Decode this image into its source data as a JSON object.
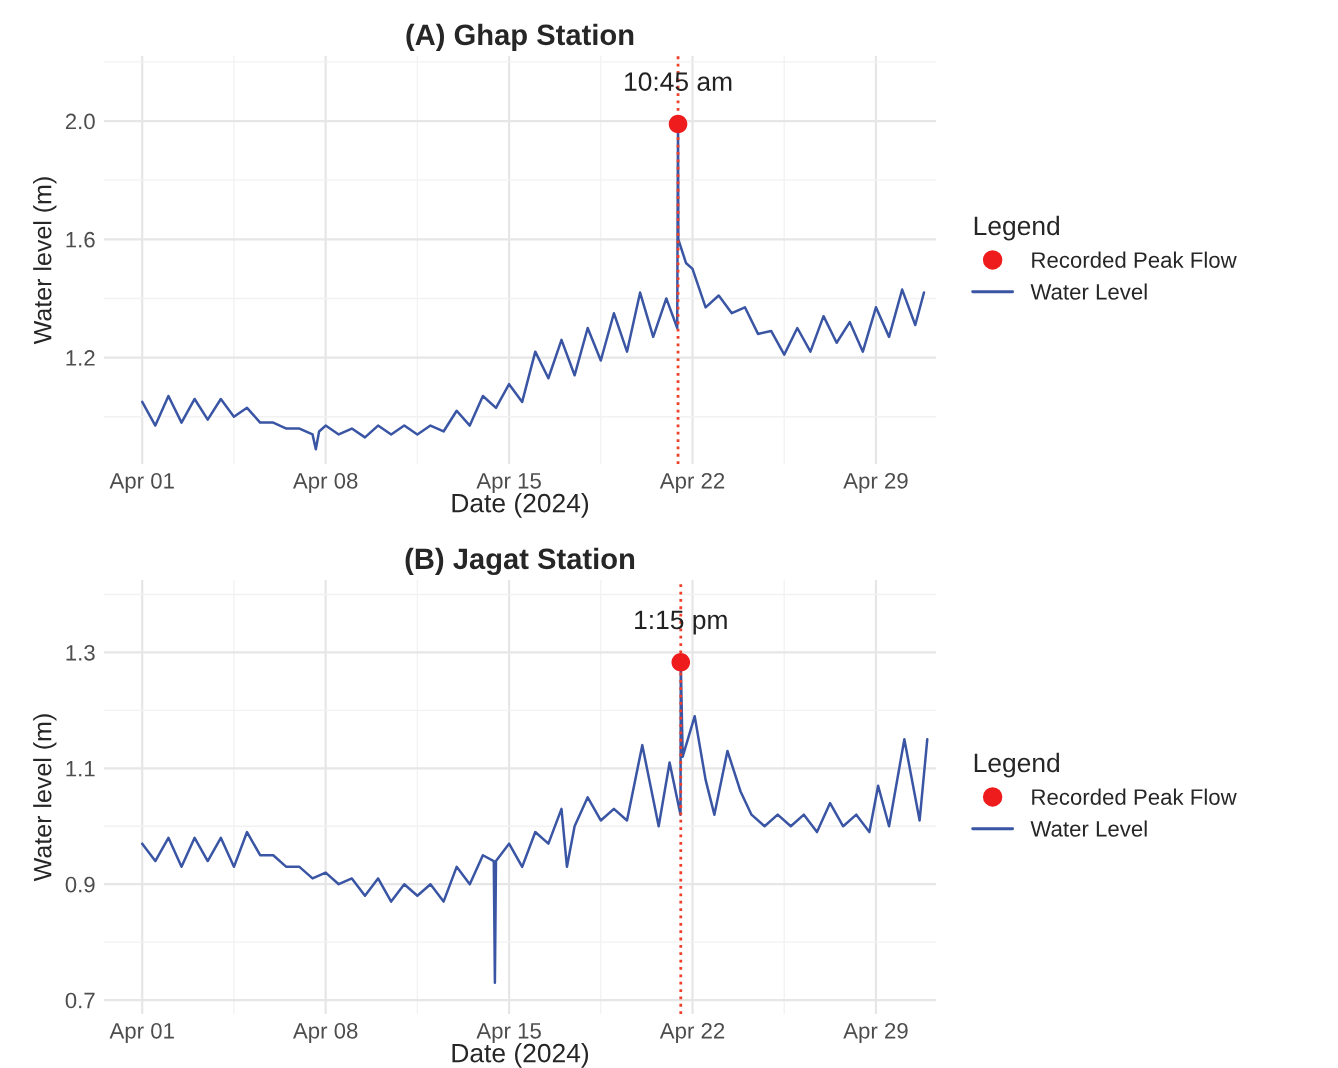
{
  "chart_data": [
    {
      "type": "line",
      "title": "(A) Ghap Station",
      "xlabel": "Date (2024)",
      "ylabel": "Water level (m)",
      "legend_title": "Legend",
      "legend": "right",
      "grid": true,
      "xlim": [
        "2024-03-30T13:00",
        "2024-05-01T07:00"
      ],
      "ylim": [
        0.84,
        2.22
      ],
      "xticks": [
        {
          "value": "2024-04-01",
          "label": "Apr 01"
        },
        {
          "value": "2024-04-08",
          "label": "Apr 08"
        },
        {
          "value": "2024-04-15",
          "label": "Apr 15"
        },
        {
          "value": "2024-04-22",
          "label": "Apr 22"
        },
        {
          "value": "2024-04-29",
          "label": "Apr 29"
        }
      ],
      "yticks": [
        1.2,
        1.6,
        {
          "value": 2.0,
          "label": "2.0"
        }
      ],
      "ref_lines": [
        {
          "axis": "x",
          "value": "2024-04-21T10:45",
          "color": "#f0402a",
          "line_style": "dotted"
        }
      ],
      "annotations": [
        {
          "text": "10:45 am",
          "x": "2024-04-21T10:45",
          "y": 1.99
        }
      ],
      "series": [
        {
          "name": "Recorded Peak Flow",
          "type": "scatter",
          "color": "#ee1c1c",
          "marker": "circle",
          "x": [
            "2024-04-21T10:45"
          ],
          "values": [
            1.99
          ]
        },
        {
          "name": "Water Level",
          "color": "#3a55a4",
          "line_style": "solid",
          "x": [
            "2024-04-01T00:00",
            "2024-04-01T12:00",
            "2024-04-02T00:00",
            "2024-04-02T12:00",
            "2024-04-03T00:00",
            "2024-04-03T12:00",
            "2024-04-04T00:00",
            "2024-04-04T12:00",
            "2024-04-05T00:00",
            "2024-04-05T12:00",
            "2024-04-06T00:00",
            "2024-04-06T12:00",
            "2024-04-07T00:00",
            "2024-04-07T12:00",
            "2024-04-07T15:00",
            "2024-04-07T18:00",
            "2024-04-08T00:00",
            "2024-04-08T12:00",
            "2024-04-09T00:00",
            "2024-04-09T12:00",
            "2024-04-10T00:00",
            "2024-04-10T12:00",
            "2024-04-11T00:00",
            "2024-04-11T12:00",
            "2024-04-12T00:00",
            "2024-04-12T12:00",
            "2024-04-13T00:00",
            "2024-04-13T12:00",
            "2024-04-14T00:00",
            "2024-04-14T12:00",
            "2024-04-15T00:00",
            "2024-04-15T12:00",
            "2024-04-16T00:00",
            "2024-04-16T12:00",
            "2024-04-17T00:00",
            "2024-04-17T12:00",
            "2024-04-18T00:00",
            "2024-04-18T12:00",
            "2024-04-19T00:00",
            "2024-04-19T12:00",
            "2024-04-20T00:00",
            "2024-04-20T12:00",
            "2024-04-21T00:00",
            "2024-04-21T10:00",
            "2024-04-21T10:30",
            "2024-04-21T10:45",
            "2024-04-21T11:00",
            "2024-04-21T18:00",
            "2024-04-22T00:00",
            "2024-04-22T12:00",
            "2024-04-23T00:00",
            "2024-04-23T12:00",
            "2024-04-24T00:00",
            "2024-04-24T12:00",
            "2024-04-25T00:00",
            "2024-04-25T12:00",
            "2024-04-26T00:00",
            "2024-04-26T12:00",
            "2024-04-27T00:00",
            "2024-04-27T12:00",
            "2024-04-28T00:00",
            "2024-04-28T12:00",
            "2024-04-29T00:00",
            "2024-04-29T12:00",
            "2024-04-30T00:00",
            "2024-04-30T12:00",
            "2024-04-30T20:00"
          ],
          "values": [
            1.05,
            0.97,
            1.07,
            0.98,
            1.06,
            0.99,
            1.06,
            1.0,
            1.03,
            0.98,
            0.98,
            0.96,
            0.96,
            0.94,
            0.89,
            0.95,
            0.97,
            0.94,
            0.96,
            0.93,
            0.97,
            0.94,
            0.97,
            0.94,
            0.97,
            0.95,
            1.02,
            0.97,
            1.07,
            1.03,
            1.11,
            1.05,
            1.22,
            1.13,
            1.26,
            1.14,
            1.3,
            1.19,
            1.35,
            1.22,
            1.42,
            1.27,
            1.4,
            1.3,
            1.81,
            1.99,
            1.6,
            1.52,
            1.5,
            1.37,
            1.41,
            1.35,
            1.37,
            1.28,
            1.29,
            1.21,
            1.3,
            1.22,
            1.34,
            1.25,
            1.32,
            1.22,
            1.37,
            1.27,
            1.43,
            1.31,
            1.42
          ]
        }
      ]
    },
    {
      "type": "line",
      "title": "(B) Jagat Station",
      "xlabel": "Date (2024)",
      "ylabel": "Water level (m)",
      "legend_title": "Legend",
      "legend": "right",
      "grid": true,
      "xlim": [
        "2024-03-30T13:00",
        "2024-05-01T07:00"
      ],
      "ylim": [
        0.676,
        1.425
      ],
      "xticks": [
        {
          "value": "2024-04-01",
          "label": "Apr 01"
        },
        {
          "value": "2024-04-08",
          "label": "Apr 08"
        },
        {
          "value": "2024-04-15",
          "label": "Apr 15"
        },
        {
          "value": "2024-04-22",
          "label": "Apr 22"
        },
        {
          "value": "2024-04-29",
          "label": "Apr 29"
        }
      ],
      "yticks": [
        0.7,
        0.9,
        1.1,
        1.3
      ],
      "ref_lines": [
        {
          "axis": "x",
          "value": "2024-04-21T13:15",
          "color": "#f0402a",
          "line_style": "dotted"
        }
      ],
      "annotations": [
        {
          "text": "1:15 pm",
          "x": "2024-04-21T13:15",
          "y": 1.283
        }
      ],
      "series": [
        {
          "name": "Recorded Peak Flow",
          "type": "scatter",
          "color": "#ee1c1c",
          "marker": "circle",
          "x": [
            "2024-04-21T13:15"
          ],
          "values": [
            1.283
          ]
        },
        {
          "name": "Water Level",
          "color": "#3a55a4",
          "line_style": "solid",
          "x": [
            "2024-04-01T00:00",
            "2024-04-01T12:00",
            "2024-04-02T00:00",
            "2024-04-02T12:00",
            "2024-04-03T00:00",
            "2024-04-03T12:00",
            "2024-04-04T00:00",
            "2024-04-04T12:00",
            "2024-04-05T00:00",
            "2024-04-05T12:00",
            "2024-04-06T00:00",
            "2024-04-06T12:00",
            "2024-04-07T00:00",
            "2024-04-07T12:00",
            "2024-04-08T00:00",
            "2024-04-08T12:00",
            "2024-04-09T00:00",
            "2024-04-09T12:00",
            "2024-04-10T00:00",
            "2024-04-10T12:00",
            "2024-04-11T00:00",
            "2024-04-11T12:00",
            "2024-04-12T00:00",
            "2024-04-12T12:00",
            "2024-04-13T00:00",
            "2024-04-13T12:00",
            "2024-04-14T00:00",
            "2024-04-14T10:00",
            "2024-04-14T11:00",
            "2024-04-14T12:00",
            "2024-04-15T00:00",
            "2024-04-15T12:00",
            "2024-04-16T00:00",
            "2024-04-16T12:00",
            "2024-04-17T00:00",
            "2024-04-17T05:00",
            "2024-04-17T12:00",
            "2024-04-18T00:00",
            "2024-04-18T12:00",
            "2024-04-19T00:00",
            "2024-04-19T12:00",
            "2024-04-20T02:00",
            "2024-04-20T17:00",
            "2024-04-21T03:00",
            "2024-04-21T13:00",
            "2024-04-21T13:15",
            "2024-04-21T15:00",
            "2024-04-22T02:00",
            "2024-04-22T12:00",
            "2024-04-22T20:00",
            "2024-04-23T08:00",
            "2024-04-23T20:00",
            "2024-04-24T06:00",
            "2024-04-24T18:00",
            "2024-04-25T06:00",
            "2024-04-25T18:00",
            "2024-04-26T06:00",
            "2024-04-26T18:00",
            "2024-04-27T06:00",
            "2024-04-27T18:00",
            "2024-04-28T06:00",
            "2024-04-28T18:00",
            "2024-04-29T02:00",
            "2024-04-29T12:00",
            "2024-04-30T02:00",
            "2024-04-30T16:00",
            "2024-04-30T23:00"
          ],
          "values": [
            0.97,
            0.94,
            0.98,
            0.93,
            0.98,
            0.94,
            0.98,
            0.93,
            0.99,
            0.95,
            0.95,
            0.93,
            0.93,
            0.91,
            0.92,
            0.9,
            0.91,
            0.88,
            0.91,
            0.87,
            0.9,
            0.88,
            0.9,
            0.87,
            0.93,
            0.9,
            0.95,
            0.94,
            0.73,
            0.94,
            0.97,
            0.93,
            0.99,
            0.97,
            1.03,
            0.93,
            1.0,
            1.05,
            1.01,
            1.03,
            1.01,
            1.14,
            1.0,
            1.11,
            1.02,
            1.283,
            1.12,
            1.19,
            1.08,
            1.02,
            1.13,
            1.06,
            1.02,
            1.0,
            1.02,
            1.0,
            1.02,
            0.99,
            1.04,
            1.0,
            1.02,
            0.99,
            1.07,
            1.0,
            1.15,
            1.01,
            1.15
          ]
        }
      ]
    }
  ]
}
